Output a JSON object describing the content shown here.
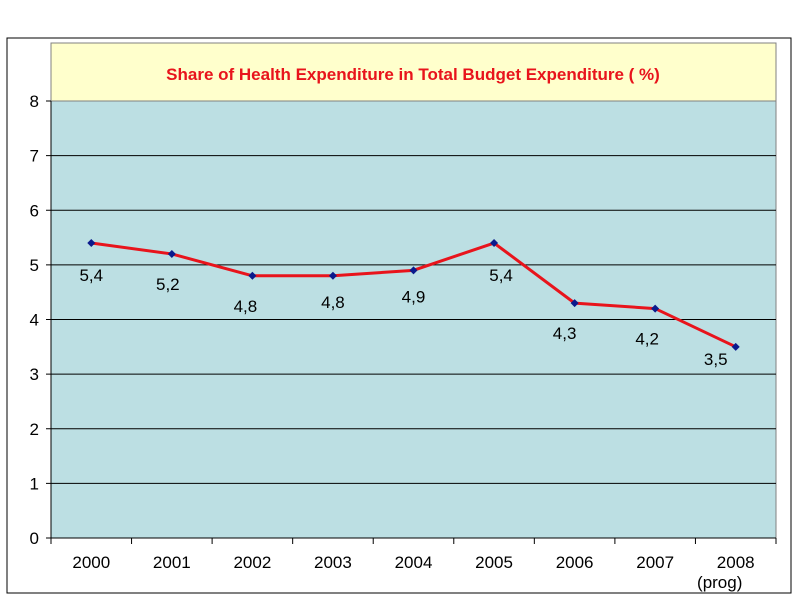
{
  "chart_data": {
    "type": "line",
    "title": "Share of Health Expenditure in Total Budget Expenditure ( %)",
    "categories": [
      "2000",
      "2001",
      "2002",
      "2003",
      "2004",
      "2005",
      "2006",
      "2007",
      "2008"
    ],
    "category_sublabels": [
      "",
      "",
      "",
      "",
      "",
      "",
      "",
      "",
      "(prog)"
    ],
    "series": [
      {
        "values": [
          5.4,
          5.2,
          4.8,
          4.8,
          4.9,
          5.4,
          4.3,
          4.2,
          3.5
        ],
        "data_labels": [
          "5,4",
          "5,2",
          "4,8",
          "4,8",
          "4,9",
          "5,4",
          "4,3",
          "4,2",
          "3,5"
        ],
        "line_color": "#e8141c",
        "marker_color": "#0b1a8c"
      }
    ],
    "y_ticks": [
      "0",
      "1",
      "2",
      "3",
      "4",
      "5",
      "6",
      "7",
      "8"
    ],
    "ylim": [
      0,
      8
    ],
    "grid": true,
    "legend": false,
    "colors": {
      "plot_background": "#bcdfe3",
      "title_background": "#ffffcc",
      "title_text": "#e8141c",
      "gridline": "#000000"
    }
  }
}
